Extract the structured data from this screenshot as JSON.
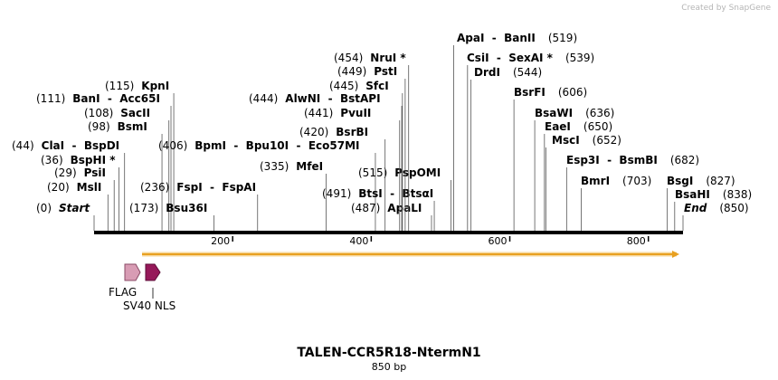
{
  "credit": "Created by SnapGene",
  "title": "TALEN-CCR5R18-NtermN1",
  "subtitle": "850 bp",
  "ruler": {
    "length": 850,
    "ticks": [
      200,
      400,
      600,
      800
    ]
  },
  "enzymes": [
    {
      "position": 0,
      "label": "(0)",
      "name": "Start"
    },
    {
      "position": 20,
      "label": "(20)",
      "name": "MslI"
    },
    {
      "position": 29,
      "label": "(29)",
      "name": "PsiI"
    },
    {
      "position": 36,
      "label": "(36)",
      "name": "BspHI *"
    },
    {
      "position": 44,
      "label": "(44)",
      "name": "ClaI  -  BspDI"
    },
    {
      "position": 98,
      "label": "(98)",
      "name": "BsmI"
    },
    {
      "position": 108,
      "label": "(108)",
      "name": "SacII"
    },
    {
      "position": 111,
      "label": "(111)",
      "name": "BanI  -  Acc65I"
    },
    {
      "position": 115,
      "label": "(115)",
      "name": "KpnI"
    },
    {
      "position": 173,
      "label": "(173)",
      "name": "Bsu36I"
    },
    {
      "position": 236,
      "label": "(236)",
      "name": "FspI  -  FspAI"
    },
    {
      "position": 406,
      "label": "(406)",
      "name": "BpmI  -  Bpu10I  -  Eco57MI"
    },
    {
      "position": 335,
      "label": "(335)",
      "name": "MfeI"
    },
    {
      "position": 491,
      "label": "(491)",
      "name": "BtsI  -  BtsαI"
    },
    {
      "position": 487,
      "label": "(487)",
      "name": "ApaLI"
    },
    {
      "position": 515,
      "label": "(515)",
      "name": "PspOMI"
    },
    {
      "position": 420,
      "label": "(420)",
      "name": "BsrBI"
    },
    {
      "position": 441,
      "label": "(441)",
      "name": "PvuII"
    },
    {
      "position": 444,
      "label": "(444)",
      "name": "AlwNI  -  BstAPI"
    },
    {
      "position": 445,
      "label": "(445)",
      "name": "SfcI"
    },
    {
      "position": 449,
      "label": "(449)",
      "name": "PstI"
    },
    {
      "position": 454,
      "label": "(454)",
      "name": "NruI *"
    },
    {
      "position": 519,
      "label": "(519)",
      "name": "ApaI  -  BanII"
    },
    {
      "position": 539,
      "label": "(539)",
      "name": "CsiI  -  SexAI *"
    },
    {
      "position": 544,
      "label": "(544)",
      "name": "DrdI"
    },
    {
      "position": 606,
      "label": "(606)",
      "name": "BsrFI"
    },
    {
      "position": 636,
      "label": "(636)",
      "name": "BsaWI"
    },
    {
      "position": 650,
      "label": "(650)",
      "name": "EaeI"
    },
    {
      "position": 652,
      "label": "(652)",
      "name": "MscI"
    },
    {
      "position": 682,
      "label": "(682)",
      "name": "Esp3I  -  BsmBI"
    },
    {
      "position": 703,
      "label": "(703)",
      "name": "BmrI"
    },
    {
      "position": 827,
      "label": "(827)",
      "name": "BsgI"
    },
    {
      "position": 838,
      "label": "(838)",
      "name": "BsaHI"
    },
    {
      "position": 850,
      "label": "(850)",
      "name": "End"
    }
  ],
  "features": [
    {
      "name": "FLAG"
    },
    {
      "name": "SV40 NLS"
    }
  ]
}
